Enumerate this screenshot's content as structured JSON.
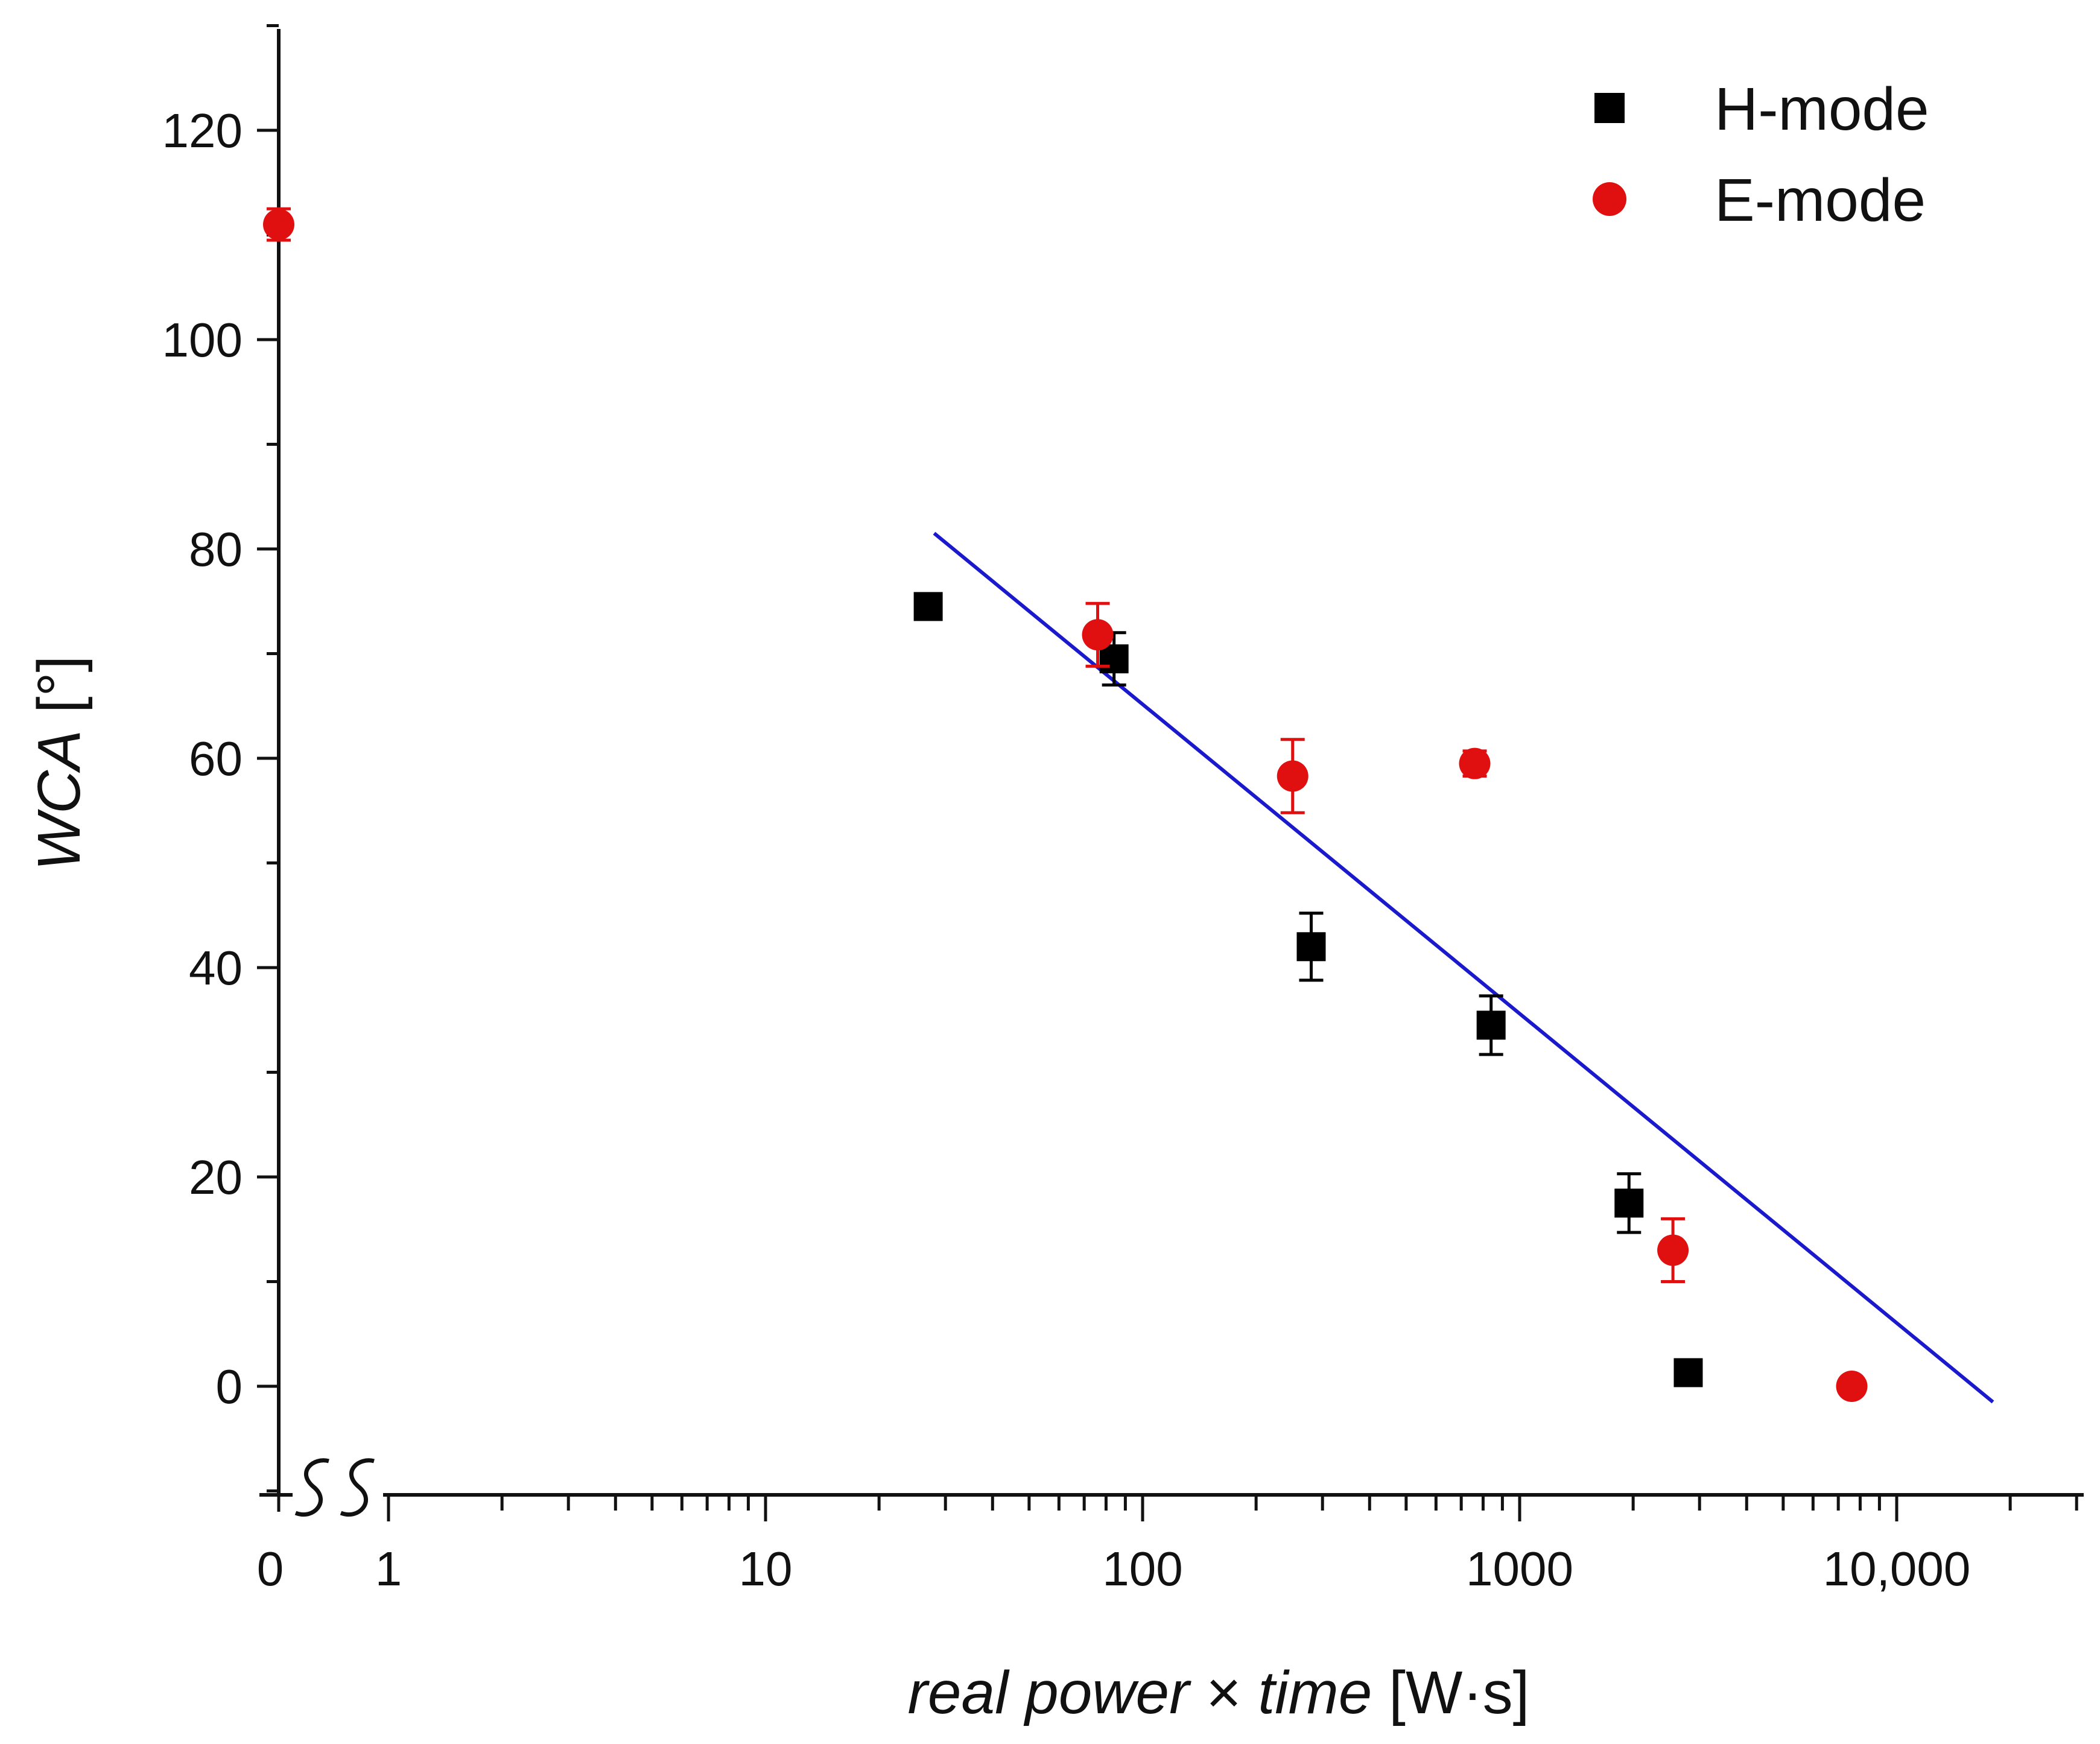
{
  "chart_data": {
    "type": "scatter",
    "title": "",
    "xlabel": {
      "italic_part": "real power",
      "times": "×",
      "italic_part2": "time",
      "unit": "[W·s]"
    },
    "ylabel": {
      "italic_part": "WCA",
      "unit": "[°]"
    },
    "xscale": "log",
    "xlim": [
      1,
      35000
    ],
    "ylim": [
      -10,
      130
    ],
    "x_break": {
      "zero_label": "0",
      "symbol": "break"
    },
    "x_ticks": [
      {
        "value": 1,
        "label": "1"
      },
      {
        "value": 10,
        "label": "10"
      },
      {
        "value": 100,
        "label": "100"
      },
      {
        "value": 1000,
        "label": "1000"
      },
      {
        "value": 10000,
        "label": "10,000"
      }
    ],
    "y_ticks": [
      {
        "value": 0,
        "label": "0"
      },
      {
        "value": 20,
        "label": "20"
      },
      {
        "value": 40,
        "label": "40"
      },
      {
        "value": 60,
        "label": "60"
      },
      {
        "value": 80,
        "label": "80"
      },
      {
        "value": 100,
        "label": "100"
      },
      {
        "value": 120,
        "label": "120"
      }
    ],
    "legend": {
      "position": "top-right"
    },
    "series": [
      {
        "name": "H-mode",
        "marker": "square",
        "color": "#000000",
        "points": [
          {
            "x": 27,
            "y": 74.5,
            "err": 1.0
          },
          {
            "x": 84,
            "y": 69.5,
            "err": 2.5
          },
          {
            "x": 280,
            "y": 42.0,
            "err": 3.2
          },
          {
            "x": 840,
            "y": 34.5,
            "err": 2.8
          },
          {
            "x": 1950,
            "y": 17.5,
            "err": 2.8
          },
          {
            "x": 2800,
            "y": 1.3,
            "err": 0.8
          }
        ]
      },
      {
        "name": "E-mode",
        "marker": "circle",
        "color": "#e01010",
        "points": [
          {
            "x": 0,
            "y": 111.0,
            "err": 1.5
          },
          {
            "x": 76,
            "y": 71.8,
            "err": 3.0
          },
          {
            "x": 250,
            "y": 58.3,
            "err": 3.5
          },
          {
            "x": 760,
            "y": 59.5,
            "err": 1.2
          },
          {
            "x": 2550,
            "y": 13.0,
            "err": 3.0
          },
          {
            "x": 7600,
            "y": 0.0,
            "err": 0.5
          }
        ]
      }
    ],
    "fit": {
      "name": "fit",
      "color": "#1a1acc",
      "x": [
        28,
        18000
      ],
      "y": [
        81.5,
        -1.5
      ]
    }
  }
}
